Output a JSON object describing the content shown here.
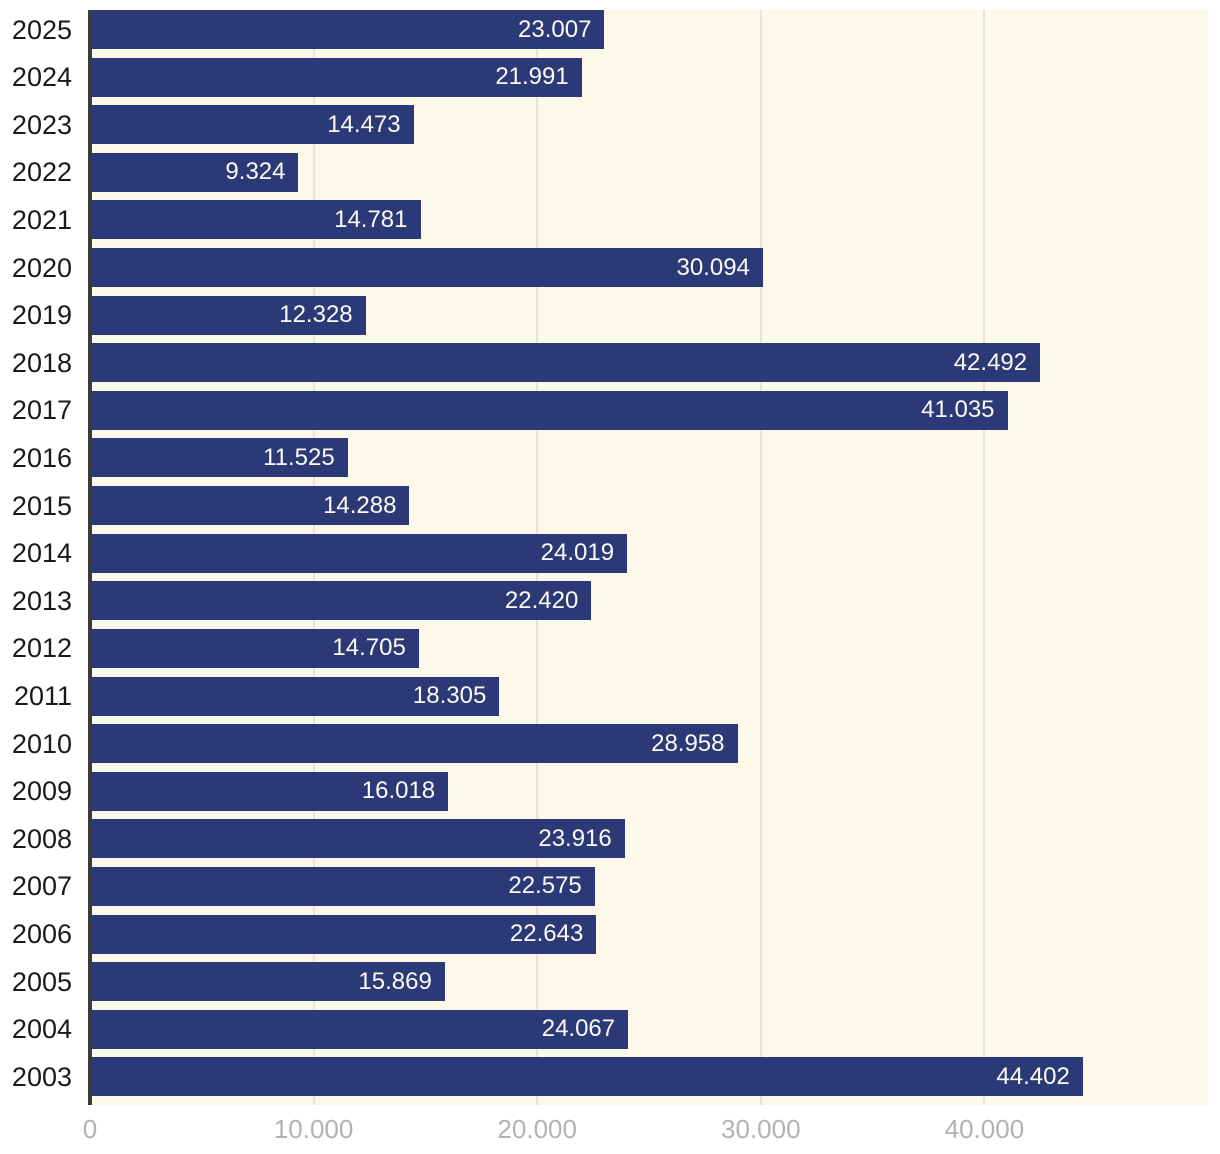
{
  "chart_data": {
    "type": "bar",
    "orientation": "horizontal",
    "title": "",
    "xlabel": "",
    "ylabel": "",
    "categories": [
      "2025",
      "2024",
      "2023",
      "2022",
      "2021",
      "2020",
      "2019",
      "2018",
      "2017",
      "2016",
      "2015",
      "2014",
      "2013",
      "2012",
      "2011",
      "2010",
      "2009",
      "2008",
      "2007",
      "2006",
      "2005",
      "2004",
      "2003"
    ],
    "values": [
      23007,
      21991,
      14473,
      9324,
      14781,
      30094,
      12328,
      42492,
      41035,
      11525,
      14288,
      24019,
      22420,
      14705,
      18305,
      28958,
      16018,
      23916,
      22575,
      22643,
      15869,
      24067,
      44402
    ],
    "value_labels": [
      "23.007",
      "21.991",
      "14.473",
      "9.324",
      "14.781",
      "30.094",
      "12.328",
      "42.492",
      "41.035",
      "11.525",
      "14.288",
      "24.019",
      "22.420",
      "14.705",
      "18.305",
      "28.958",
      "16.018",
      "23.916",
      "22.575",
      "22.643",
      "15.869",
      "24.067",
      "44.402"
    ],
    "xlim": [
      0,
      50000
    ],
    "x_ticks": [
      {
        "value": 0,
        "label": "0"
      },
      {
        "value": 10000,
        "label": "10.000"
      },
      {
        "value": 20000,
        "label": "20.000"
      },
      {
        "value": 30000,
        "label": "30.000"
      },
      {
        "value": 40000,
        "label": "40.000"
      }
    ],
    "grid": "vertical-only",
    "legend": "none",
    "colors": {
      "bar": "#2b3a76",
      "plot_background": "#fdf9e8",
      "page_background": "#ffffff",
      "value_text": "#fbfaf4",
      "year_text": "#1a1a1a",
      "tick_text": "#b2b2b2",
      "gridline": "#e6e3d8",
      "axis_line": "#3a3a3a"
    }
  }
}
